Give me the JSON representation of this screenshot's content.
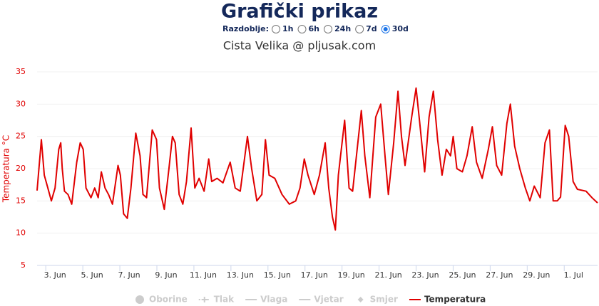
{
  "chart_data": {
    "type": "line",
    "title": "Grafički prikaz",
    "period_label": "Razdoblje:",
    "period_options": [
      "1h",
      "6h",
      "24h",
      "7d",
      "30d"
    ],
    "period_selected": 4,
    "subtitle": "Cista Velika @ pljusak.com",
    "ylabel": "Temperatura °C",
    "ylim": [
      5,
      35
    ],
    "yticks": [
      5,
      10,
      15,
      20,
      25,
      30,
      35
    ],
    "xlim": [
      2.03,
      32.3
    ],
    "xticks": [
      {
        "value": 3,
        "label": "3. Jun"
      },
      {
        "value": 5,
        "label": "5. Jun"
      },
      {
        "value": 7,
        "label": "7. Jun"
      },
      {
        "value": 9,
        "label": "9. Jun"
      },
      {
        "value": 11,
        "label": "11. Jun"
      },
      {
        "value": 13,
        "label": "13. Jun"
      },
      {
        "value": 15,
        "label": "15. Jun"
      },
      {
        "value": 17,
        "label": "17. Jun"
      },
      {
        "value": 19,
        "label": "19. Jun"
      },
      {
        "value": 21,
        "label": "21. Jun"
      },
      {
        "value": 23,
        "label": "23. Jun"
      },
      {
        "value": 25,
        "label": "25. Jun"
      },
      {
        "value": 27,
        "label": "27. Jun"
      },
      {
        "value": 29,
        "label": "29. Jun"
      },
      {
        "value": 31,
        "label": "1. Jul"
      }
    ],
    "grid": true,
    "legend_inactive": [
      "Oborine",
      "Tlak",
      "Vlaga",
      "Vjetar",
      "Smjer"
    ],
    "series": [
      {
        "name": "Temperatura",
        "color": "#e00000",
        "x": [
          2.03,
          2.26,
          2.42,
          2.61,
          2.8,
          3.0,
          3.2,
          3.31,
          3.39,
          3.51,
          3.7,
          3.9,
          4.17,
          4.36,
          4.52,
          4.67,
          4.94,
          5.14,
          5.33,
          5.5,
          5.7,
          5.89,
          6.1,
          6.4,
          6.53,
          6.7,
          6.9,
          7.1,
          7.36,
          7.59,
          7.75,
          7.94,
          8.25,
          8.48,
          8.64,
          8.9,
          9.15,
          9.34,
          9.49,
          9.7,
          9.9,
          10.1,
          10.35,
          10.55,
          10.78,
          11.05,
          11.3,
          11.46,
          11.75,
          12.07,
          12.46,
          12.73,
          13.0,
          13.39,
          13.62,
          13.9,
          14.17,
          14.36,
          14.56,
          14.87,
          15.26,
          15.65,
          16.0,
          16.23,
          16.46,
          16.66,
          17.0,
          17.28,
          17.59,
          17.78,
          17.98,
          18.14,
          18.3,
          18.64,
          18.88,
          19.07,
          19.54,
          19.73,
          20.0,
          20.32,
          20.59,
          20.82,
          21.0,
          21.29,
          21.52,
          21.71,
          21.9,
          22.26,
          22.5,
          22.7,
          22.96,
          23.2,
          23.43,
          23.66,
          23.9,
          24.13,
          24.36,
          24.5,
          24.7,
          25.0,
          25.25,
          25.53,
          25.76,
          26.07,
          26.4,
          26.62,
          26.85,
          27.12,
          27.4,
          27.59,
          27.82,
          28.1,
          28.4,
          28.64,
          28.88,
          29.2,
          29.46,
          29.7,
          29.9,
          30.12,
          30.3,
          30.55,
          30.74,
          30.98,
          31.21,
          31.68,
          32.0,
          32.3
        ],
        "values": [
          16.6,
          24.5,
          19,
          17,
          15,
          17,
          23,
          24,
          20,
          16.5,
          16,
          14.5,
          21,
          24,
          23,
          17,
          15.5,
          17,
          15.5,
          19.5,
          17,
          16,
          14.5,
          20.5,
          19,
          13,
          12.3,
          17,
          25.5,
          22,
          16,
          15.5,
          26,
          24.5,
          17,
          13.7,
          20,
          25,
          24,
          16,
          14.5,
          18,
          26.3,
          17,
          18.5,
          16.5,
          21.5,
          18,
          18.5,
          17.8,
          21,
          17,
          16.5,
          25,
          20,
          15,
          16,
          24.5,
          19,
          18.5,
          16,
          14.5,
          15,
          17,
          21.5,
          19,
          16,
          19,
          24,
          17,
          12.5,
          10.5,
          19,
          27.5,
          17,
          16.5,
          29,
          22,
          15.5,
          28,
          30,
          22,
          16,
          24,
          32,
          25,
          20.5,
          28,
          32.5,
          27,
          19.5,
          28,
          32,
          24.5,
          19,
          23,
          22,
          25,
          20,
          19.5,
          22,
          26.5,
          21,
          18.5,
          23,
          26.5,
          20.5,
          19,
          27,
          30,
          23.5,
          20,
          17,
          15,
          17.3,
          15.5,
          24,
          26,
          15,
          15,
          15.6,
          26.7,
          25,
          18,
          16.8,
          16.5,
          15.5,
          14.7
        ]
      }
    ]
  }
}
